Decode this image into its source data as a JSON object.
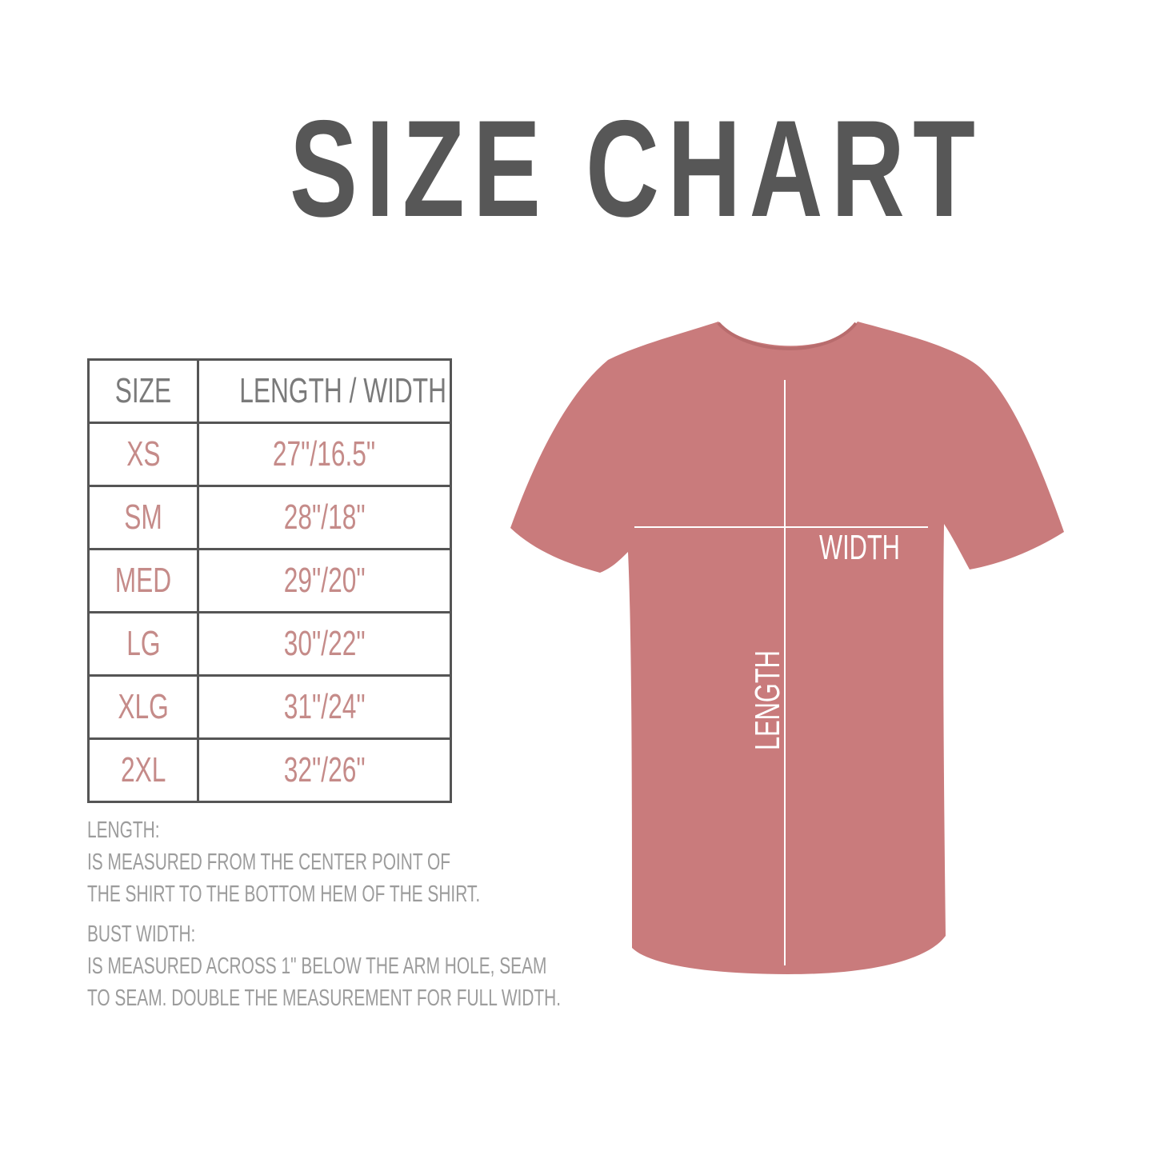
{
  "title": "SIZE CHART",
  "table": {
    "headers": [
      "SIZE",
      "LENGTH / WIDTH"
    ],
    "rows": [
      {
        "size": "XS",
        "measure": "27\"/16.5\""
      },
      {
        "size": "SM",
        "measure": "28\"/18\""
      },
      {
        "size": "MED",
        "measure": "29\"/20\""
      },
      {
        "size": "LG",
        "measure": "30\"/22\""
      },
      {
        "size": "XLG",
        "measure": "31\"/24\""
      },
      {
        "size": "2XL",
        "measure": "32\"/26\""
      }
    ]
  },
  "notes": {
    "length_title": "LENGTH:",
    "length_lines": [
      "IS MEASURED FROM THE CENTER POINT OF",
      "THE SHIRT TO THE BOTTOM HEM OF THE SHIRT."
    ],
    "width_title": "BUST WIDTH:",
    "width_lines": [
      "IS MEASURED ACROSS  1\" BELOW THE ARM HOLE, SEAM",
      "TO SEAM. DOUBLE THE MEASUREMENT FOR FULL WIDTH."
    ]
  },
  "diagram": {
    "width_label": "WIDTH",
    "length_label": "LENGTH",
    "shirt_color": "#c97b7c"
  },
  "colors": {
    "title": "#575757",
    "header_text": "#7a7a7a",
    "size_text": "#c58b89",
    "note_text": "#9c9c9c"
  }
}
